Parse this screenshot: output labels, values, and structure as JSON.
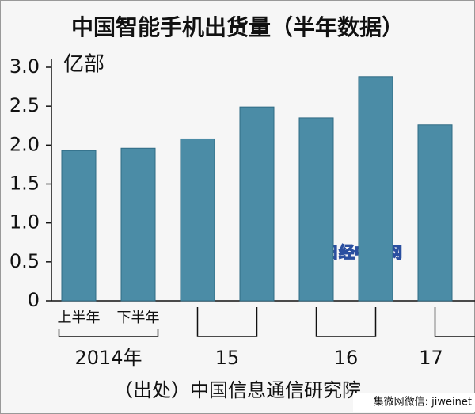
{
  "chart_data": {
    "type": "bar",
    "title": "中国智能手机出货量（半年数据）",
    "unit": "亿部",
    "source": "（出处）中国信息通信研究院",
    "watermarks": [
      "日经中文网",
      "集微网微信: jiweinet"
    ],
    "categories": [
      "上半年",
      "下半年",
      null,
      null,
      null,
      null,
      null
    ],
    "year_labels": [
      "2014年",
      "15",
      "16",
      "17"
    ],
    "values": [
      1.93,
      1.96,
      2.08,
      2.49,
      2.35,
      2.88,
      2.26
    ],
    "color": "#4b8ca6",
    "ylim": [
      0,
      3.0
    ],
    "yticks": [
      0,
      0.5,
      {
        "value": 1.0,
        "label": "1.0"
      },
      1.5,
      {
        "value": 2.0,
        "label": "2.0"
      },
      2.5,
      {
        "value": 3.0,
        "label": "3.0"
      }
    ],
    "grid": false
  }
}
